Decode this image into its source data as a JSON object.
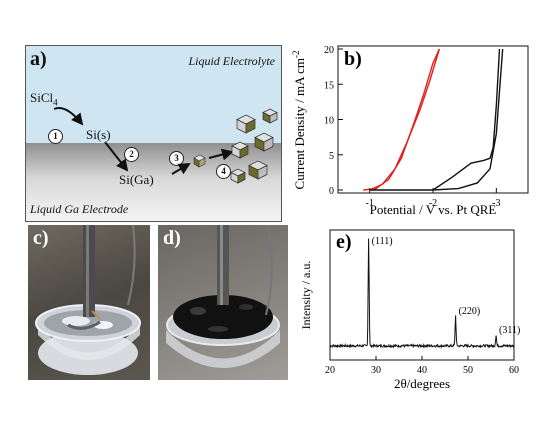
{
  "panel_a": {
    "label": "a)",
    "liquid_electrolyte": "Liquid Electrolyte",
    "ga_electrode": "Liquid Ga Electrode",
    "sicl4_main": "SiCl",
    "sicl4_sub": "4",
    "si_s": "Si(s)",
    "si_ga": "Si(Ga)",
    "steps": [
      "1",
      "2",
      "3",
      "4"
    ],
    "colors": {
      "electrolyte": "#cfe6f2",
      "gallium_top": "#9e9e9e",
      "gallium_bottom": "#f2f2f2",
      "crystal_dark": "#6b6b2e",
      "crystal_light": "#e0e0e0"
    }
  },
  "panel_b": {
    "label": "b)",
    "xlabel": "Potential / V vs. Pt QRE",
    "ylabel": "Current Density  / mA cm",
    "ylabel_sup": "-2",
    "x_ticks": [
      "-1",
      "-2",
      "-3"
    ],
    "y_ticks": [
      "0",
      "5",
      "10",
      "15",
      "20"
    ]
  },
  "panel_c": {
    "label": "c)"
  },
  "panel_d": {
    "label": "d)"
  },
  "panel_e": {
    "label": "e)",
    "xlabel": "2θ/degrees",
    "ylabel": "Intensity / a.u.",
    "x_ticks": [
      "20",
      "30",
      "40",
      "50",
      "60"
    ],
    "peak_labels": [
      "(111)",
      "(220)",
      "(311)"
    ]
  },
  "chart_data": [
    {
      "type": "line",
      "title": "",
      "xlabel": "Potential / V vs. Pt QRE",
      "ylabel": "Current Density  / mA cm-2",
      "xlim": [
        -0.5,
        -3.5
      ],
      "ylim": [
        0,
        20
      ],
      "series": [
        {
          "color": "#e0201b",
          "x": [
            -0.9,
            -1.1,
            -1.3,
            -1.5,
            -1.7,
            -1.85,
            -2.0,
            -2.1
          ],
          "y": [
            0.0,
            0.2,
            1.5,
            4.5,
            9.5,
            13.5,
            18.0,
            20.0
          ]
        },
        {
          "color": "#e0201b",
          "x": [
            -1.0,
            -1.2,
            -1.4,
            -1.6,
            -1.8,
            -1.95,
            -2.1
          ],
          "y": [
            0.0,
            0.8,
            3.0,
            7.0,
            11.5,
            15.5,
            20.0
          ]
        },
        {
          "color": "#111111",
          "x": [
            -1.0,
            -2.0,
            -2.4,
            -2.7,
            -2.9,
            -3.0,
            -3.05,
            -3.1
          ],
          "y": [
            0.0,
            0.0,
            0.2,
            1.0,
            3.0,
            8.0,
            14.0,
            20.0
          ]
        },
        {
          "color": "#111111",
          "x": [
            -2.0,
            -2.3,
            -2.6,
            -2.8,
            -2.9,
            -2.95,
            -3.0,
            -3.05
          ],
          "y": [
            0.0,
            1.8,
            3.8,
            4.2,
            4.5,
            6.0,
            12.0,
            20.0
          ]
        }
      ]
    },
    {
      "type": "line",
      "title": "",
      "xlabel": "2θ/degrees",
      "ylabel": "Intensity / a.u.",
      "xlim": [
        20,
        60
      ],
      "ylim": [
        0,
        100
      ],
      "peaks": [
        {
          "x": 28.4,
          "y": 100,
          "label": "(111)"
        },
        {
          "x": 47.3,
          "y": 28,
          "label": "(220)"
        },
        {
          "x": 56.1,
          "y": 10,
          "label": "(311)"
        }
      ],
      "baseline": 2.0
    }
  ]
}
